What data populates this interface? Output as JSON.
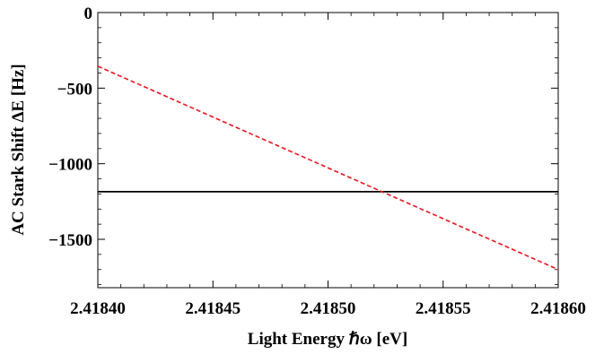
{
  "chart_data": {
    "type": "line",
    "title": "",
    "xlabel": "Light Energy ℏω [eV]",
    "ylabel": "AC Stark Shift ΔE [Hz]",
    "xlim": [
      2.4184,
      2.4186
    ],
    "ylim": [
      -1820,
      0
    ],
    "x_ticks": [
      2.4184,
      2.41845,
      2.4185,
      2.41855,
      2.4186
    ],
    "x_tick_labels": [
      "2.41840",
      "2.41845",
      "2.41850",
      "2.41855",
      "2.41860"
    ],
    "y_ticks": [
      0,
      -500,
      -1000,
      -1500
    ],
    "y_tick_labels": [
      "0",
      "−500",
      "−1000",
      "−1500"
    ],
    "grid": false,
    "legend": "none",
    "series": [
      {
        "style": "solid",
        "color": "#000000",
        "x": [
          2.4184,
          2.4186
        ],
        "y": [
          -1185,
          -1185
        ]
      },
      {
        "style": "dashed",
        "color": "#e8141c",
        "x": [
          2.4184,
          2.4186
        ],
        "y": [
          -355,
          -1700
        ]
      }
    ]
  }
}
